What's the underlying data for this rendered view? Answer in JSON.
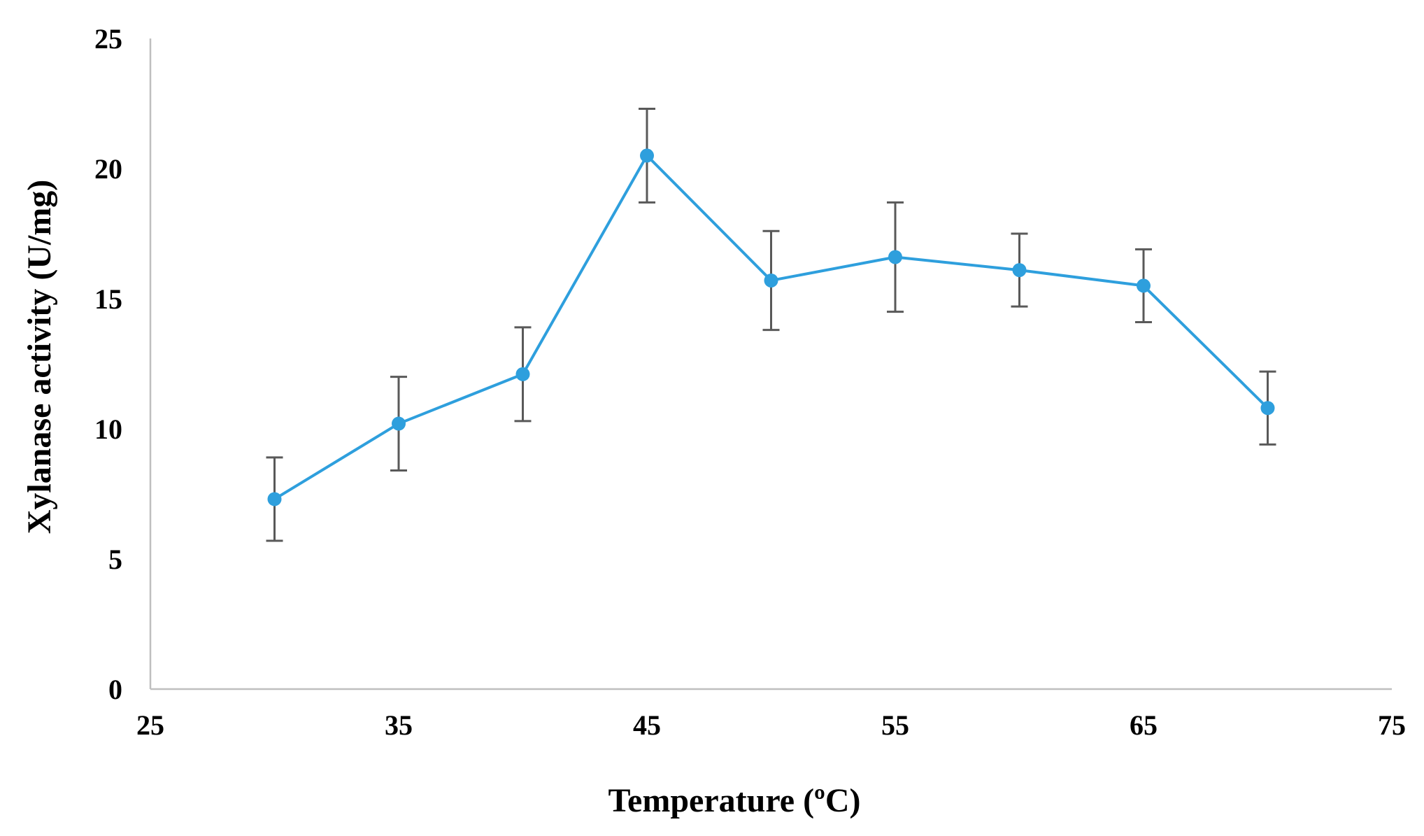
{
  "chart_data": {
    "type": "line",
    "title": "",
    "xlabel": "Temperature (ºC)",
    "ylabel": "Xylanase activity (U/mg)",
    "xlim": [
      25,
      75
    ],
    "ylim": [
      0,
      25
    ],
    "xticks": [
      25,
      35,
      45,
      55,
      65,
      75
    ],
    "yticks": [
      0,
      5,
      10,
      15,
      20,
      25
    ],
    "grid": false,
    "legend": "none",
    "series": [
      {
        "name": "Xylanase activity",
        "color": "#2E9FDD",
        "x": [
          30,
          35,
          40,
          45,
          50,
          55,
          60,
          65,
          70
        ],
        "y": [
          7.3,
          10.2,
          12.1,
          20.5,
          15.7,
          16.6,
          16.1,
          15.5,
          10.8
        ],
        "error": [
          1.6,
          1.8,
          1.8,
          1.8,
          1.9,
          2.1,
          1.4,
          1.4,
          1.4
        ]
      }
    ],
    "colors": {
      "line": "#2E9FDD",
      "error_bars": "#595959",
      "axes": "#BFBFBF"
    }
  }
}
